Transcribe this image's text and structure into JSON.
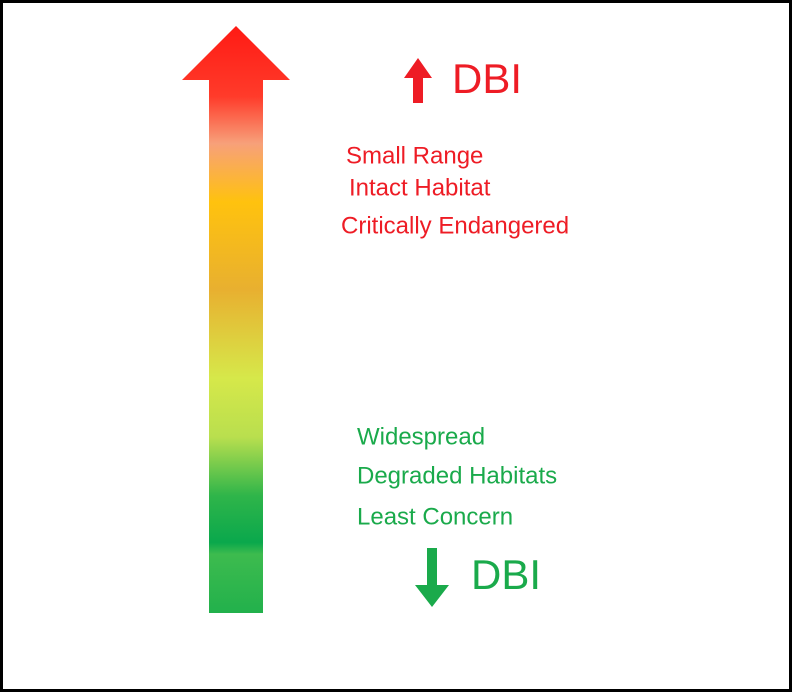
{
  "top": {
    "label": "DBI",
    "items": [
      "Small Range",
      "Intact Habitat",
      "Critically Endangered"
    ]
  },
  "bottom": {
    "label": "DBI",
    "items": [
      "Widespread",
      "Degraded Habitats",
      "Least Concern"
    ]
  }
}
